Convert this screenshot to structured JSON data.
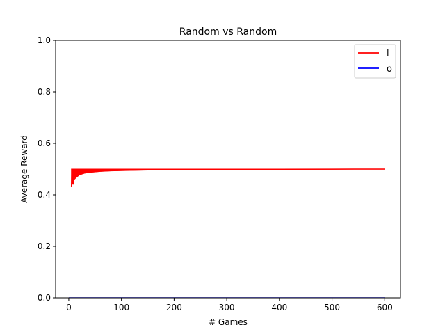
{
  "chart_data": {
    "type": "line",
    "title": "Random vs Random",
    "xlabel": "# Games",
    "ylabel": "Average Reward",
    "xlim": [
      -25,
      630
    ],
    "ylim": [
      0,
      1
    ],
    "xticks": [
      0,
      100,
      200,
      300,
      400,
      500,
      600
    ],
    "yticks": [
      0.0,
      0.2,
      0.4,
      0.6,
      0.8,
      1.0
    ],
    "xtick_labels": [
      "0",
      "100",
      "200",
      "300",
      "400",
      "500",
      "600"
    ],
    "ytick_labels": [
      "0.0",
      "0.2",
      "0.4",
      "0.6",
      "0.8",
      "1.0"
    ],
    "grid": false,
    "legend_position": "top-right",
    "series": [
      {
        "name": "l",
        "color": "#ff0000",
        "x": [
          5,
          6,
          8,
          10,
          15,
          20,
          30,
          40,
          60,
          80,
          100,
          150,
          200,
          300,
          400,
          500,
          600
        ],
        "y": [
          0.43,
          0.5,
          0.44,
          0.46,
          0.47,
          0.478,
          0.485,
          0.488,
          0.492,
          0.494,
          0.495,
          0.497,
          0.498,
          0.499,
          0.4995,
          0.4998,
          0.5
        ],
        "envelope": {
          "x": [
            5,
            6,
            8,
            10,
            15,
            20,
            30,
            40,
            60,
            80,
            100,
            150,
            200,
            300,
            400,
            500,
            600
          ],
          "upper": [
            0.5,
            0.5,
            0.5,
            0.5,
            0.5,
            0.5,
            0.5,
            0.5,
            0.5,
            0.5,
            0.5,
            0.5,
            0.5,
            0.5,
            0.5,
            0.5,
            0.5
          ],
          "lower": [
            0.43,
            0.44,
            0.455,
            0.465,
            0.472,
            0.478,
            0.484,
            0.487,
            0.491,
            0.493,
            0.494,
            0.496,
            0.497,
            0.498,
            0.4988,
            0.4994,
            0.4998
          ]
        }
      },
      {
        "name": "o",
        "color": "#0000ff",
        "x": [
          0,
          600
        ],
        "y": [
          0,
          0
        ]
      }
    ]
  }
}
